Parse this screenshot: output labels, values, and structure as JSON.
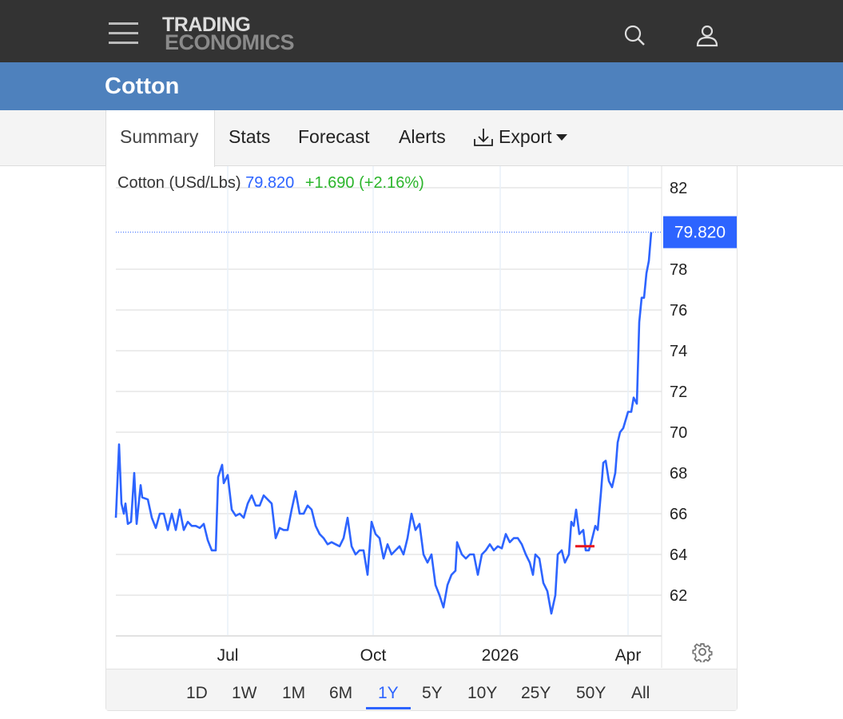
{
  "header": {
    "logo_line1": "TRADING",
    "logo_line2": "ECONOMICS"
  },
  "page_title": "Cotton",
  "tabs": [
    {
      "label": "Summary"
    },
    {
      "label": "Stats"
    },
    {
      "label": "Forecast"
    },
    {
      "label": "Alerts"
    },
    {
      "label": "Export"
    }
  ],
  "legend": {
    "name": "Cotton (USd/Lbs)",
    "price": "79.820",
    "change": "+1.690 (+2.16%)"
  },
  "ranges": [
    "1D",
    "1W",
    "1M",
    "6M",
    "1Y",
    "5Y",
    "10Y",
    "25Y",
    "50Y",
    "All"
  ],
  "active_range": "1Y",
  "colors": {
    "line": "#2d64ff",
    "up": "#2bb52b",
    "marker": "#e8141c",
    "header": "#333333",
    "titlebar": "#4e81bd"
  },
  "chart_data": {
    "type": "line",
    "title": "Cotton (USd/Lbs)",
    "xlim": [
      0,
      341.5
    ],
    "ylim": [
      60,
      83.06
    ],
    "yticks": [
      62,
      64,
      66,
      68,
      70,
      72,
      74,
      76,
      78,
      82
    ],
    "xticks": [
      {
        "label": "Jul",
        "x": 70
      },
      {
        "label": "Oct",
        "x": 161
      },
      {
        "label": "2026",
        "x": 240.5
      },
      {
        "label": "Apr",
        "x": 320.5
      }
    ],
    "last_value_label": "79.820",
    "last_value": 79.82,
    "marker": {
      "x0": 287.5,
      "x1": 299.5,
      "value": 64.4
    },
    "series": [
      {
        "name": "Cotton",
        "points": [
          [
            0,
            65.8
          ],
          [
            2,
            69.4
          ],
          [
            3.5,
            66.5
          ],
          [
            5,
            66.0
          ],
          [
            6,
            66.5
          ],
          [
            7.5,
            65.5
          ],
          [
            9.5,
            65.6
          ],
          [
            11.5,
            68.0
          ],
          [
            13,
            65.5
          ],
          [
            15.5,
            67.4
          ],
          [
            16.5,
            66.8
          ],
          [
            20,
            66.7
          ],
          [
            22.5,
            65.8
          ],
          [
            25,
            65.3
          ],
          [
            27.5,
            66.0
          ],
          [
            30,
            66.0
          ],
          [
            32.5,
            65.2
          ],
          [
            35,
            66.0
          ],
          [
            37.5,
            65.2
          ],
          [
            40,
            66.2
          ],
          [
            42.5,
            65.2
          ],
          [
            45,
            65.6
          ],
          [
            47.5,
            65.4
          ],
          [
            50,
            65.4
          ],
          [
            52.5,
            65.3
          ],
          [
            55,
            65.5
          ],
          [
            57.5,
            64.7
          ],
          [
            60,
            64.2
          ],
          [
            62.5,
            64.2
          ],
          [
            64,
            67.8
          ],
          [
            66.5,
            68.4
          ],
          [
            67.5,
            67.5
          ],
          [
            70,
            67.9
          ],
          [
            72.5,
            66.2
          ],
          [
            75,
            65.9
          ],
          [
            77.5,
            66.0
          ],
          [
            80,
            65.8
          ],
          [
            82.5,
            66.5
          ],
          [
            85,
            66.9
          ],
          [
            87.5,
            66.4
          ],
          [
            90,
            66.4
          ],
          [
            92.5,
            66.9
          ],
          [
            97.5,
            66.5
          ],
          [
            100,
            64.8
          ],
          [
            102.5,
            65.3
          ],
          [
            105,
            65.2
          ],
          [
            107.5,
            65.2
          ],
          [
            110,
            66.2
          ],
          [
            112.5,
            67.1
          ],
          [
            115,
            66.0
          ],
          [
            117.5,
            66.0
          ],
          [
            120,
            66.4
          ],
          [
            122.5,
            66.2
          ],
          [
            125,
            65.4
          ],
          [
            127.5,
            65.0
          ],
          [
            130,
            64.8
          ],
          [
            132.5,
            64.5
          ],
          [
            135,
            64.6
          ],
          [
            137.5,
            64.5
          ],
          [
            140,
            64.4
          ],
          [
            142.5,
            64.8
          ],
          [
            145,
            65.8
          ],
          [
            147.5,
            64.4
          ],
          [
            150,
            64.0
          ],
          [
            152.5,
            64.2
          ],
          [
            155,
            64.2
          ],
          [
            157.5,
            63.0
          ],
          [
            160,
            65.6
          ],
          [
            162.5,
            65.0
          ],
          [
            165,
            64.8
          ],
          [
            167.5,
            63.8
          ],
          [
            170,
            64.5
          ],
          [
            172.5,
            64.0
          ],
          [
            175,
            64.2
          ],
          [
            177.5,
            64.4
          ],
          [
            180,
            64.0
          ],
          [
            182.5,
            64.8
          ],
          [
            185,
            66.0
          ],
          [
            187.5,
            65.2
          ],
          [
            190,
            65.5
          ],
          [
            192.5,
            64.0
          ],
          [
            195,
            63.6
          ],
          [
            197.5,
            64.0
          ],
          [
            200,
            62.5
          ],
          [
            202.5,
            62.0
          ],
          [
            205,
            61.4
          ],
          [
            207.5,
            62.5
          ],
          [
            210,
            63.0
          ],
          [
            212.5,
            63.2
          ],
          [
            213.5,
            64.6
          ],
          [
            216.5,
            64.0
          ],
          [
            219,
            63.8
          ],
          [
            221.5,
            64.0
          ],
          [
            224,
            64.0
          ],
          [
            226.5,
            63.0
          ],
          [
            229,
            64.0
          ],
          [
            231.5,
            64.2
          ],
          [
            234,
            64.5
          ],
          [
            236.5,
            64.2
          ],
          [
            239,
            64.4
          ],
          [
            241.5,
            64.3
          ],
          [
            244,
            65.0
          ],
          [
            246.5,
            64.6
          ],
          [
            249,
            64.8
          ],
          [
            251.5,
            64.8
          ],
          [
            254,
            64.5
          ],
          [
            256.5,
            64.0
          ],
          [
            259,
            63.6
          ],
          [
            261,
            63.0
          ],
          [
            262.5,
            64.0
          ],
          [
            265,
            63.8
          ],
          [
            267.5,
            62.6
          ],
          [
            270,
            62.2
          ],
          [
            272.5,
            61.1
          ],
          [
            275,
            62.0
          ],
          [
            276.5,
            64.0
          ],
          [
            279,
            64.2
          ],
          [
            281,
            63.6
          ],
          [
            283.5,
            64.0
          ],
          [
            285,
            65.6
          ],
          [
            286.5,
            65.4
          ],
          [
            288,
            66.2
          ],
          [
            290,
            65.0
          ],
          [
            292.5,
            65.2
          ],
          [
            294,
            64.2
          ],
          [
            296,
            64.2
          ],
          [
            297.5,
            64.6
          ],
          [
            300,
            65.4
          ],
          [
            301.5,
            65.2
          ],
          [
            303.5,
            67.0
          ],
          [
            305,
            68.5
          ],
          [
            306.5,
            68.6
          ],
          [
            308.5,
            67.6
          ],
          [
            310.5,
            67.3
          ],
          [
            312.5,
            68.0
          ],
          [
            314,
            69.5
          ],
          [
            315.5,
            70.0
          ],
          [
            317.5,
            70.2
          ],
          [
            319,
            70.6
          ],
          [
            320.5,
            71.0
          ],
          [
            322.5,
            71.0
          ],
          [
            324,
            71.7
          ],
          [
            326,
            71.4
          ],
          [
            327.5,
            75.4
          ],
          [
            329,
            76.6
          ],
          [
            330.5,
            76.6
          ],
          [
            332,
            77.8
          ],
          [
            333.5,
            78.4
          ],
          [
            335,
            79.82
          ]
        ]
      }
    ]
  }
}
